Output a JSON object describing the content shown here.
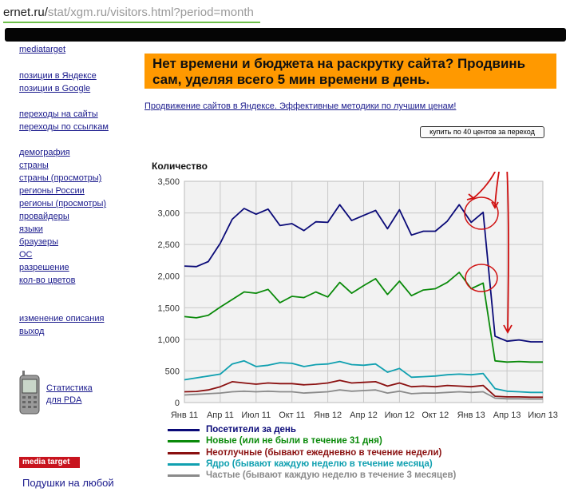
{
  "browser": {
    "domain": "ernet.ru/",
    "path": "stat/xgm.ru/visitors.html?period=month"
  },
  "sidebar": {
    "items": [
      "mediatarget",
      "позиции в Яндексе",
      "позиции в Google",
      "переходы на сайты",
      "переходы по ссылкам",
      "демография",
      "страны",
      "страны (просмотры)",
      "регионы России",
      "регионы (просмотры)",
      "провайдеры",
      "языки",
      "браузеры",
      "ОС",
      "разрешение",
      "кол-во цветов",
      "изменение описания",
      "выход"
    ],
    "pda_line1": "Статистика",
    "pda_line2": "для PDA",
    "logo_text": "media target",
    "bottom_link": "Подушки на любой"
  },
  "banner": {
    "text": "Нет времени и бюджета на раскрутку сайта? Продвинь сам, уделяя всего 5 мин времени в день."
  },
  "promo_link": "Продвижение сайтов в Яндексе. Эффективные методики по лучшим ценам!",
  "buy_button": "купить по 40 центов за переход",
  "chart_data": {
    "type": "line",
    "ylabel": "Количество",
    "ylim": [
      0,
      3500
    ],
    "yticks": [
      "3,500",
      "3,000",
      "2,500",
      "2,000",
      "1,500",
      "1,000",
      "500",
      "0"
    ],
    "xticks": [
      "Янв 11",
      "Апр 11",
      "Июл 11",
      "Окт 11",
      "Янв 12",
      "Апр 12",
      "Июл 12",
      "Окт 12",
      "Янв 13",
      "Апр 13",
      "Июл 13"
    ],
    "x_range": [
      "2011-01",
      "2013-07"
    ],
    "grid": true,
    "legend_position": "bottom",
    "series": [
      {
        "name": "Посетители за день",
        "color": "#0a0a78",
        "values": [
          2160,
          2150,
          2230,
          2520,
          2900,
          3070,
          2980,
          3060,
          2800,
          2830,
          2720,
          2860,
          2850,
          3130,
          2880,
          2960,
          3040,
          2750,
          3050,
          2650,
          2710,
          2710,
          2870,
          3130,
          2850,
          3010,
          1050,
          970,
          990,
          960,
          960
        ]
      },
      {
        "name": "Новые (или не были в течение 31 дня)",
        "color": "#0a8a0a",
        "values": [
          1360,
          1340,
          1380,
          1510,
          1630,
          1750,
          1730,
          1790,
          1580,
          1680,
          1660,
          1750,
          1670,
          1900,
          1730,
          1850,
          1960,
          1710,
          1920,
          1690,
          1780,
          1800,
          1900,
          2060,
          1800,
          1890,
          660,
          640,
          650,
          640,
          640
        ]
      },
      {
        "name": "Неотлучные (бывают ежедневно в течение недели)",
        "color": "#8a1010",
        "values": [
          170,
          175,
          200,
          250,
          330,
          310,
          290,
          310,
          300,
          300,
          280,
          290,
          310,
          350,
          310,
          320,
          330,
          260,
          310,
          250,
          260,
          250,
          270,
          260,
          250,
          270,
          100,
          90,
          90,
          85,
          85
        ]
      },
      {
        "name": "Ядро (бывают каждую неделю в течение месяца)",
        "color": "#10a0b0",
        "values": [
          360,
          390,
          420,
          450,
          610,
          660,
          570,
          590,
          630,
          620,
          570,
          600,
          610,
          650,
          600,
          590,
          610,
          480,
          540,
          400,
          410,
          420,
          440,
          450,
          440,
          460,
          220,
          180,
          170,
          160,
          160
        ]
      },
      {
        "name": "Частые (бывают каждую неделю в течение 3 месяцев)",
        "color": "#8a8a8a",
        "values": [
          120,
          130,
          140,
          150,
          170,
          180,
          170,
          180,
          170,
          170,
          150,
          160,
          170,
          200,
          180,
          190,
          200,
          150,
          180,
          140,
          150,
          150,
          160,
          170,
          160,
          170,
          70,
          60,
          60,
          55,
          55
        ]
      }
    ]
  }
}
